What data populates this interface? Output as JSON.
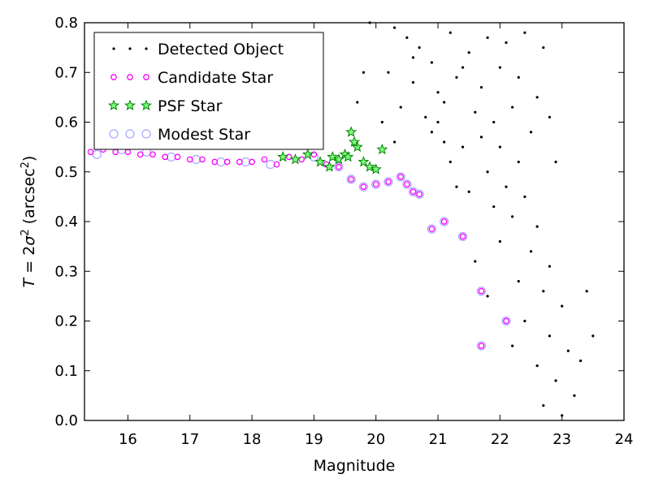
{
  "chart_data": {
    "type": "scatter",
    "xlabel": "Magnitude",
    "ylabel_parts": [
      "T",
      " = 2",
      "σ",
      "2",
      " (arcsec",
      "2",
      ")"
    ],
    "xlim": [
      15.3,
      24
    ],
    "ylim": [
      0.0,
      0.8
    ],
    "x_ticks": [
      "16",
      "17",
      "18",
      "19",
      "20",
      "21",
      "22",
      "23",
      "24"
    ],
    "y_ticks": [
      "0.0",
      "0.1",
      "0.2",
      "0.3",
      "0.4",
      "0.5",
      "0.6",
      "0.7",
      "0.8"
    ],
    "grid": false,
    "legend_position": "top-left",
    "series": [
      {
        "name": "Detected Object",
        "marker": "dot",
        "color": "#000000",
        "points": [
          [
            20.3,
            0.79
          ],
          [
            20.5,
            0.77
          ],
          [
            20.7,
            0.75
          ],
          [
            20.9,
            0.72
          ],
          [
            21.2,
            0.78
          ],
          [
            21.5,
            0.74
          ],
          [
            21.8,
            0.77
          ],
          [
            22.1,
            0.76
          ],
          [
            22.4,
            0.78
          ],
          [
            22.7,
            0.75
          ],
          [
            20.2,
            0.7
          ],
          [
            20.6,
            0.68
          ],
          [
            21.0,
            0.66
          ],
          [
            21.3,
            0.69
          ],
          [
            21.7,
            0.67
          ],
          [
            22.0,
            0.71
          ],
          [
            22.3,
            0.69
          ],
          [
            22.6,
            0.65
          ],
          [
            20.4,
            0.63
          ],
          [
            20.8,
            0.61
          ],
          [
            21.1,
            0.64
          ],
          [
            21.6,
            0.62
          ],
          [
            21.9,
            0.6
          ],
          [
            22.2,
            0.63
          ],
          [
            22.5,
            0.58
          ],
          [
            20.3,
            0.56
          ],
          [
            20.9,
            0.58
          ],
          [
            21.4,
            0.55
          ],
          [
            21.7,
            0.57
          ],
          [
            22.0,
            0.55
          ],
          [
            22.3,
            0.52
          ],
          [
            21.2,
            0.52
          ],
          [
            21.8,
            0.5
          ],
          [
            22.1,
            0.47
          ],
          [
            22.4,
            0.45
          ],
          [
            21.5,
            0.46
          ],
          [
            21.9,
            0.43
          ],
          [
            22.2,
            0.41
          ],
          [
            22.6,
            0.39
          ],
          [
            22.0,
            0.36
          ],
          [
            22.5,
            0.34
          ],
          [
            22.8,
            0.31
          ],
          [
            22.3,
            0.28
          ],
          [
            22.7,
            0.26
          ],
          [
            23.0,
            0.23
          ],
          [
            22.4,
            0.2
          ],
          [
            22.8,
            0.17
          ],
          [
            23.1,
            0.14
          ],
          [
            22.6,
            0.11
          ],
          [
            22.9,
            0.08
          ],
          [
            23.2,
            0.05
          ],
          [
            22.7,
            0.03
          ],
          [
            23.0,
            0.01
          ],
          [
            22.2,
            0.15
          ],
          [
            21.8,
            0.25
          ],
          [
            21.6,
            0.32
          ],
          [
            23.4,
            0.26
          ],
          [
            23.3,
            0.12
          ],
          [
            22.9,
            0.52
          ],
          [
            22.8,
            0.61
          ],
          [
            23.5,
            0.17
          ],
          [
            21.4,
            0.71
          ],
          [
            20.6,
            0.73
          ],
          [
            21.0,
            0.6
          ],
          [
            20.1,
            0.6
          ],
          [
            19.9,
            0.8
          ],
          [
            19.8,
            0.7
          ],
          [
            19.7,
            0.64
          ],
          [
            21.3,
            0.47
          ],
          [
            21.1,
            0.56
          ]
        ]
      },
      {
        "name": "Candidate Star",
        "marker": "circle",
        "color": "#ff00ff",
        "points": [
          [
            15.4,
            0.54
          ],
          [
            15.6,
            0.545
          ],
          [
            15.8,
            0.54
          ],
          [
            16.0,
            0.54
          ],
          [
            16.2,
            0.535
          ],
          [
            16.4,
            0.535
          ],
          [
            16.6,
            0.53
          ],
          [
            16.8,
            0.53
          ],
          [
            17.0,
            0.525
          ],
          [
            17.2,
            0.525
          ],
          [
            17.4,
            0.52
          ],
          [
            17.6,
            0.52
          ],
          [
            17.8,
            0.52
          ],
          [
            18.0,
            0.52
          ],
          [
            18.2,
            0.525
          ],
          [
            18.4,
            0.515
          ],
          [
            18.6,
            0.53
          ],
          [
            18.8,
            0.525
          ],
          [
            19.0,
            0.535
          ],
          [
            19.2,
            0.515
          ],
          [
            19.4,
            0.51
          ],
          [
            19.6,
            0.485
          ],
          [
            19.8,
            0.47
          ],
          [
            20.0,
            0.475
          ],
          [
            20.2,
            0.48
          ],
          [
            20.4,
            0.49
          ],
          [
            20.5,
            0.475
          ],
          [
            20.6,
            0.46
          ],
          [
            20.7,
            0.455
          ],
          [
            20.9,
            0.385
          ],
          [
            21.1,
            0.4
          ],
          [
            21.4,
            0.37
          ],
          [
            21.7,
            0.26
          ],
          [
            21.7,
            0.15
          ],
          [
            22.1,
            0.2
          ]
        ]
      },
      {
        "name": "PSF Star",
        "marker": "star",
        "color": "#008000",
        "points": [
          [
            18.5,
            0.53
          ],
          [
            18.7,
            0.525
          ],
          [
            18.9,
            0.535
          ],
          [
            19.1,
            0.52
          ],
          [
            19.3,
            0.53
          ],
          [
            19.4,
            0.525
          ],
          [
            19.5,
            0.535
          ],
          [
            19.6,
            0.58
          ],
          [
            19.7,
            0.55
          ],
          [
            19.8,
            0.52
          ],
          [
            19.9,
            0.51
          ],
          [
            20.0,
            0.505
          ],
          [
            20.1,
            0.545
          ],
          [
            19.55,
            0.53
          ],
          [
            19.25,
            0.51
          ],
          [
            19.65,
            0.56
          ]
        ]
      },
      {
        "name": "Modest Star",
        "marker": "ring",
        "color": "#aaaaff",
        "points": [
          [
            15.5,
            0.535
          ],
          [
            15.9,
            0.545
          ],
          [
            16.3,
            0.54
          ],
          [
            16.7,
            0.53
          ],
          [
            17.1,
            0.525
          ],
          [
            17.5,
            0.52
          ],
          [
            17.9,
            0.52
          ],
          [
            18.3,
            0.515
          ],
          [
            19.0,
            0.53
          ],
          [
            19.4,
            0.51
          ],
          [
            19.6,
            0.485
          ],
          [
            19.8,
            0.47
          ],
          [
            20.0,
            0.475
          ],
          [
            20.2,
            0.48
          ],
          [
            20.4,
            0.49
          ],
          [
            20.5,
            0.475
          ],
          [
            20.6,
            0.46
          ],
          [
            20.7,
            0.455
          ],
          [
            20.9,
            0.385
          ],
          [
            21.1,
            0.4
          ],
          [
            21.4,
            0.37
          ],
          [
            21.7,
            0.26
          ],
          [
            21.7,
            0.15
          ],
          [
            22.1,
            0.2
          ]
        ]
      }
    ]
  }
}
